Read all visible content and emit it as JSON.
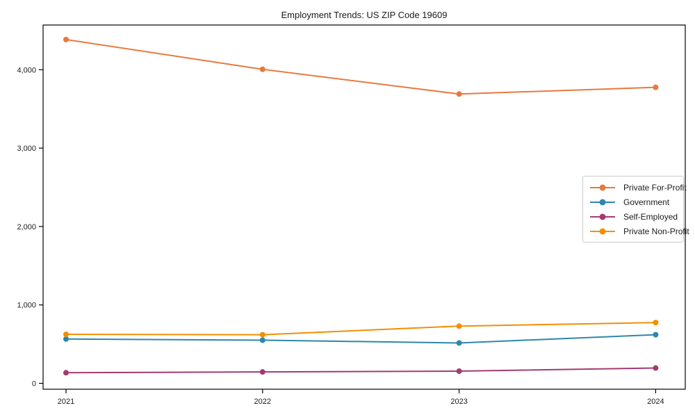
{
  "chart_data": {
    "type": "line",
    "title": "Employment Trends: US ZIP Code 19609",
    "categories": [
      "2021",
      "2022",
      "2023",
      "2024"
    ],
    "series": [
      {
        "name": "Private For-Profit",
        "color": "#E8793E",
        "values": [
          4385,
          4005,
          3690,
          3775
        ]
      },
      {
        "name": "Government",
        "color": "#2E86AB",
        "values": [
          565,
          550,
          515,
          620
        ]
      },
      {
        "name": "Self-Employed",
        "color": "#A23B72",
        "values": [
          135,
          145,
          155,
          195
        ]
      },
      {
        "name": "Private Non-Profit",
        "color": "#F18F01",
        "values": [
          625,
          620,
          730,
          775
        ]
      }
    ],
    "xlabel": "",
    "ylabel": "",
    "yticks": {
      "values": [
        0,
        1000,
        2000,
        3000,
        4000
      ],
      "labels": [
        "0",
        "1,000",
        "2,000",
        "3,000",
        "4,000"
      ]
    },
    "ylim": [
      -75,
      4570
    ],
    "grid": false,
    "legend_position": "center right",
    "axis_color": "#000000",
    "text_color": "#1a1a1a",
    "background": "#ffffff"
  }
}
